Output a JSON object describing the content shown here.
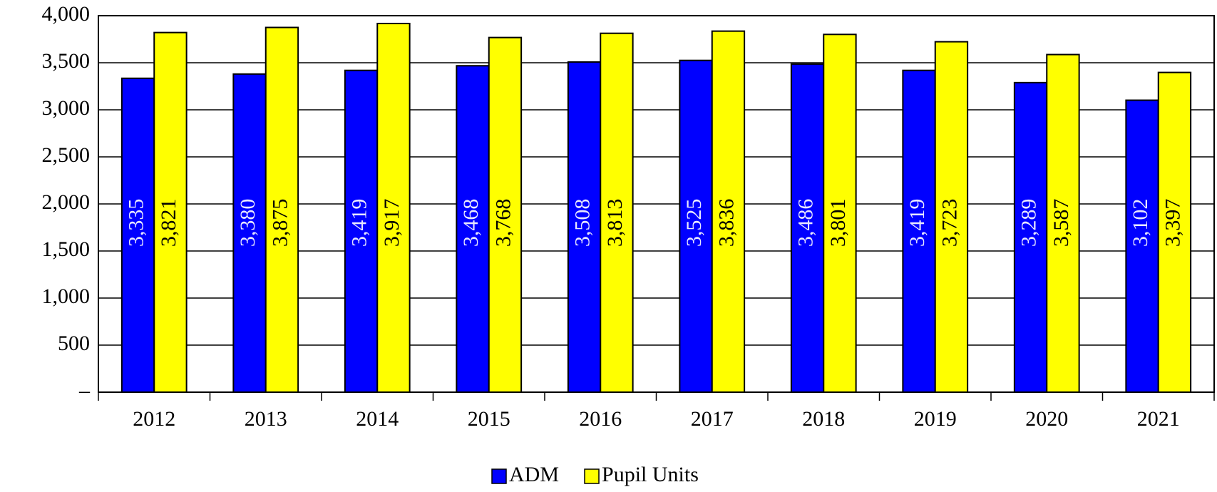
{
  "chart_data": {
    "type": "bar",
    "categories": [
      "2012",
      "2013",
      "2014",
      "2015",
      "2016",
      "2017",
      "2018",
      "2019",
      "2020",
      "2021"
    ],
    "series": [
      {
        "name": "ADM",
        "color": "#0000ff",
        "values": [
          3335,
          3380,
          3419,
          3468,
          3508,
          3525,
          3486,
          3419,
          3289,
          3102
        ],
        "value_labels": [
          "3,335",
          "3,380",
          "3,419",
          "3,468",
          "3,508",
          "3,525",
          "3,486",
          "3,419",
          "3,289",
          "3,102"
        ]
      },
      {
        "name": "Pupil Units",
        "color": "#ffff00",
        "values": [
          3821,
          3875,
          3917,
          3768,
          3813,
          3836,
          3801,
          3723,
          3587,
          3397
        ],
        "value_labels": [
          "3,821",
          "3,875",
          "3,917",
          "3,768",
          "3,813",
          "3,836",
          "3,801",
          "3,723",
          "3,587",
          "3,397"
        ]
      }
    ],
    "ylim": [
      0,
      4000
    ],
    "yticks": [
      {
        "value": 0,
        "label": "–"
      },
      500,
      {
        "value": 1000,
        "label": "1,000"
      },
      {
        "value": 1500,
        "label": "1,500"
      },
      {
        "value": 2000,
        "label": "2,000"
      },
      {
        "value": 2500,
        "label": "2,500"
      },
      {
        "value": 3000,
        "label": "3,000"
      },
      {
        "value": 3500,
        "label": "3,500"
      },
      {
        "value": 4000,
        "label": "4,000"
      }
    ],
    "grid": true,
    "legend": "bottom"
  }
}
